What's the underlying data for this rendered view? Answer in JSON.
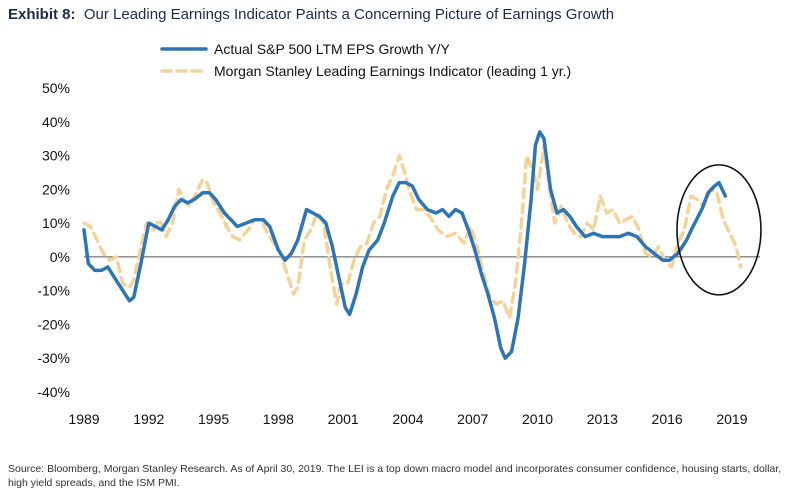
{
  "header": {
    "title_lead": "Exhibit 8:",
    "title_rest": "Our Leading Earnings Indicator Paints a Concerning Picture of Earnings Growth"
  },
  "footer": {
    "source": "Source: Bloomberg, Morgan Stanley Research. As of April 30, 2019. The LEI is a top down macro model and incorporates consumer confidence, housing starts, dollar, high yield spreads, and the ISM PMI."
  },
  "colors": {
    "actual": "#2e75b6",
    "leading": "#f2d49b",
    "axis": "#555555",
    "ellipse": "#111111"
  },
  "chart_data": {
    "type": "line",
    "title": "Our Leading Earnings Indicator Paints a Concerning Picture of Earnings Growth",
    "xlabel": "",
    "ylabel": "",
    "xlim": [
      1989,
      2020.3
    ],
    "ylim": [
      -40,
      50
    ],
    "x_ticks": [
      1989,
      1992,
      1995,
      1998,
      2001,
      2004,
      2007,
      2010,
      2013,
      2016,
      2019
    ],
    "y_ticks": [
      -40,
      -30,
      -20,
      -10,
      0,
      10,
      20,
      30,
      40,
      50
    ],
    "y_tick_labels": [
      "-40%",
      "-30%",
      "-20%",
      "-10%",
      "0%",
      "10%",
      "20%",
      "30%",
      "40%",
      "50%"
    ],
    "legend_position": "top",
    "grid": false,
    "annotation": "ellipse around 2017-2019",
    "series": [
      {
        "name": "Actual S&P 500 LTM EPS Growth Y/Y",
        "style": "solid",
        "points": [
          [
            1989.0,
            8
          ],
          [
            1989.2,
            -2
          ],
          [
            1989.5,
            -4
          ],
          [
            1989.8,
            -4
          ],
          [
            1990.1,
            -3
          ],
          [
            1990.4,
            -6
          ],
          [
            1990.8,
            -10
          ],
          [
            1991.1,
            -13
          ],
          [
            1991.3,
            -12
          ],
          [
            1991.6,
            -3
          ],
          [
            1992.0,
            10
          ],
          [
            1992.3,
            9
          ],
          [
            1992.6,
            8
          ],
          [
            1992.9,
            11
          ],
          [
            1993.2,
            15
          ],
          [
            1993.5,
            17
          ],
          [
            1993.8,
            16
          ],
          [
            1994.1,
            17
          ],
          [
            1994.5,
            19
          ],
          [
            1994.8,
            19
          ],
          [
            1995.1,
            17
          ],
          [
            1995.5,
            13
          ],
          [
            1995.8,
            11
          ],
          [
            1996.1,
            9
          ],
          [
            1996.5,
            10
          ],
          [
            1996.9,
            11
          ],
          [
            1997.3,
            11
          ],
          [
            1997.6,
            9
          ],
          [
            1998.0,
            2
          ],
          [
            1998.3,
            -1
          ],
          [
            1998.6,
            1
          ],
          [
            1998.9,
            5
          ],
          [
            1999.3,
            14
          ],
          [
            1999.6,
            13
          ],
          [
            1999.9,
            12
          ],
          [
            2000.2,
            10
          ],
          [
            2000.5,
            3
          ],
          [
            2000.8,
            -6
          ],
          [
            2001.1,
            -15
          ],
          [
            2001.3,
            -17
          ],
          [
            2001.6,
            -11
          ],
          [
            2001.9,
            -3
          ],
          [
            2002.2,
            2
          ],
          [
            2002.6,
            5
          ],
          [
            2002.9,
            10
          ],
          [
            2003.3,
            18
          ],
          [
            2003.6,
            22
          ],
          [
            2003.9,
            22
          ],
          [
            2004.2,
            21
          ],
          [
            2004.5,
            17
          ],
          [
            2004.9,
            14
          ],
          [
            2005.3,
            13
          ],
          [
            2005.6,
            14
          ],
          [
            2005.9,
            12
          ],
          [
            2006.2,
            14
          ],
          [
            2006.5,
            13
          ],
          [
            2006.8,
            8
          ],
          [
            2007.1,
            2
          ],
          [
            2007.4,
            -5
          ],
          [
            2007.7,
            -11
          ],
          [
            2008.0,
            -18
          ],
          [
            2008.3,
            -27
          ],
          [
            2008.5,
            -30
          ],
          [
            2008.8,
            -28
          ],
          [
            2009.1,
            -18
          ],
          [
            2009.4,
            -2
          ],
          [
            2009.7,
            17
          ],
          [
            2009.9,
            33
          ],
          [
            2010.1,
            37
          ],
          [
            2010.3,
            35
          ],
          [
            2010.6,
            20
          ],
          [
            2010.9,
            13
          ],
          [
            2011.2,
            14
          ],
          [
            2011.5,
            12
          ],
          [
            2011.8,
            9
          ],
          [
            2012.2,
            6
          ],
          [
            2012.6,
            7
          ],
          [
            2013.0,
            6
          ],
          [
            2013.4,
            6
          ],
          [
            2013.8,
            6
          ],
          [
            2014.2,
            7
          ],
          [
            2014.6,
            6
          ],
          [
            2015.0,
            3
          ],
          [
            2015.4,
            1
          ],
          [
            2015.8,
            -1
          ],
          [
            2016.1,
            -1
          ],
          [
            2016.5,
            1
          ],
          [
            2016.9,
            5
          ],
          [
            2017.2,
            9
          ],
          [
            2017.6,
            14
          ],
          [
            2017.9,
            19
          ],
          [
            2018.2,
            21
          ],
          [
            2018.4,
            22
          ],
          [
            2018.7,
            18
          ]
        ]
      },
      {
        "name": "Morgan Stanley Leading Earnings Indicator (leading 1 yr.)",
        "style": "dashed",
        "points": [
          [
            1989.0,
            10
          ],
          [
            1989.3,
            9
          ],
          [
            1989.6,
            5
          ],
          [
            1989.9,
            1
          ],
          [
            1990.2,
            -1
          ],
          [
            1990.5,
            0
          ],
          [
            1990.8,
            -8
          ],
          [
            1991.1,
            -9
          ],
          [
            1991.3,
            -7
          ],
          [
            1991.6,
            2
          ],
          [
            1991.9,
            10
          ],
          [
            1992.2,
            8
          ],
          [
            1992.5,
            11
          ],
          [
            1992.8,
            6
          ],
          [
            1993.1,
            10
          ],
          [
            1993.4,
            20
          ],
          [
            1993.6,
            17
          ],
          [
            1993.9,
            15
          ],
          [
            1994.2,
            19
          ],
          [
            1994.5,
            23
          ],
          [
            1994.7,
            22
          ],
          [
            1995.0,
            16
          ],
          [
            1995.3,
            13
          ],
          [
            1995.6,
            9
          ],
          [
            1995.9,
            6
          ],
          [
            1996.2,
            5
          ],
          [
            1996.6,
            8
          ],
          [
            1996.9,
            11
          ],
          [
            1997.2,
            11
          ],
          [
            1997.5,
            7
          ],
          [
            1997.8,
            4
          ],
          [
            1998.1,
            1
          ],
          [
            1998.4,
            -5
          ],
          [
            1998.7,
            -11
          ],
          [
            1998.9,
            -9
          ],
          [
            1999.2,
            5
          ],
          [
            1999.5,
            8
          ],
          [
            1999.8,
            13
          ],
          [
            2000.1,
            10
          ],
          [
            2000.4,
            -3
          ],
          [
            2000.7,
            -14
          ],
          [
            2000.9,
            -8
          ],
          [
            2001.2,
            -8
          ],
          [
            2001.5,
            -1
          ],
          [
            2001.8,
            3
          ],
          [
            2002.1,
            4
          ],
          [
            2002.4,
            10
          ],
          [
            2002.7,
            12
          ],
          [
            2003.0,
            20
          ],
          [
            2003.3,
            24
          ],
          [
            2003.6,
            30
          ],
          [
            2003.8,
            26
          ],
          [
            2004.1,
            19
          ],
          [
            2004.4,
            14
          ],
          [
            2004.7,
            14
          ],
          [
            2005.0,
            12
          ],
          [
            2005.4,
            8
          ],
          [
            2005.8,
            6
          ],
          [
            2006.2,
            7
          ],
          [
            2006.6,
            4
          ],
          [
            2006.9,
            9
          ],
          [
            2007.2,
            3
          ],
          [
            2007.5,
            -5
          ],
          [
            2007.8,
            -12
          ],
          [
            2008.1,
            -14
          ],
          [
            2008.4,
            -13
          ],
          [
            2008.7,
            -18
          ],
          [
            2009.0,
            -7
          ],
          [
            2009.3,
            13
          ],
          [
            2009.5,
            30
          ],
          [
            2009.8,
            25
          ],
          [
            2010.0,
            20
          ],
          [
            2010.3,
            33
          ],
          [
            2010.5,
            23
          ],
          [
            2010.8,
            10
          ],
          [
            2011.1,
            15
          ],
          [
            2011.4,
            10
          ],
          [
            2011.7,
            7
          ],
          [
            2012.0,
            6
          ],
          [
            2012.3,
            10
          ],
          [
            2012.6,
            8
          ],
          [
            2012.9,
            18
          ],
          [
            2013.2,
            13
          ],
          [
            2013.5,
            14
          ],
          [
            2013.8,
            10
          ],
          [
            2014.1,
            11
          ],
          [
            2014.4,
            12
          ],
          [
            2014.7,
            8
          ],
          [
            2015.0,
            1
          ],
          [
            2015.3,
            0
          ],
          [
            2015.6,
            3
          ],
          [
            2015.9,
            -1
          ],
          [
            2016.2,
            -3
          ],
          [
            2016.5,
            4
          ],
          [
            2016.8,
            8
          ],
          [
            2017.1,
            18
          ],
          [
            2017.4,
            17
          ],
          [
            2017.7,
            15
          ],
          [
            2018.0,
            20
          ],
          [
            2018.3,
            19
          ],
          [
            2018.6,
            11
          ],
          [
            2018.9,
            7
          ],
          [
            2019.2,
            3
          ],
          [
            2019.4,
            -3
          ]
        ]
      }
    ]
  }
}
